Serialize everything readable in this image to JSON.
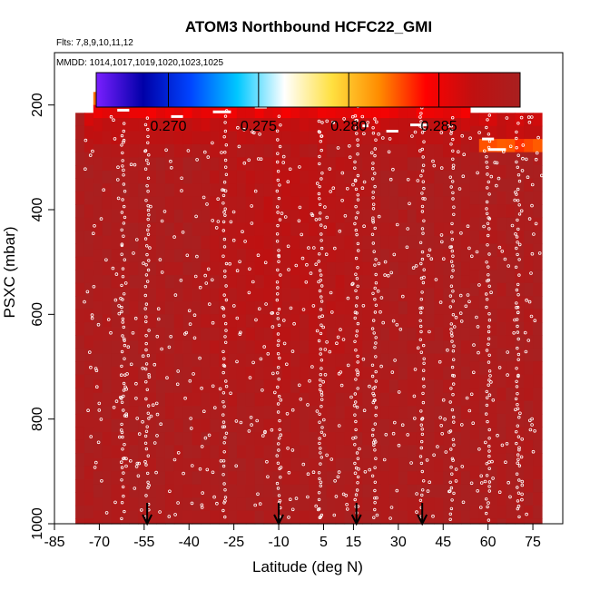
{
  "chart_data": {
    "type": "heatmap",
    "title": "ATOM3 Northbound HCFC22_GMI",
    "annotations": [
      "Flts: 7,8,9,10,11,12",
      "MMDD: 1014,1017,1019,1020,1023,1025"
    ],
    "xlabel": "Latitude (deg N)",
    "ylabel": "PSXC (mbar)",
    "xlim": [
      -85,
      85
    ],
    "ylim": [
      1000,
      100
    ],
    "x_ticks": [
      -85,
      -70,
      -55,
      -40,
      -25,
      -10,
      5,
      15,
      30,
      45,
      60,
      75
    ],
    "y_ticks": [
      200,
      400,
      600,
      800,
      1000
    ],
    "colorbar": {
      "range": [
        0.266,
        0.2895
      ],
      "ticks": [
        0.27,
        0.275,
        0.28,
        0.285
      ],
      "tick_labels": [
        "0.270",
        "0.275",
        "0.280",
        "0.285"
      ],
      "colors": [
        "#7a1fff",
        "#0000a8",
        "#0044ff",
        "#00c8ff",
        "#ffffff",
        "#ffe040",
        "#ff8c00",
        "#ff0000",
        "#c01010",
        "#a82020"
      ]
    },
    "profile_markers_lat": [
      -54,
      -10,
      16,
      38
    ],
    "field": {
      "lat_range": [
        -78,
        78
      ],
      "pressure_range": [
        175,
        1000
      ],
      "background_value": 0.289,
      "features": [
        {
          "kind": "top-layer",
          "lat": [
            -72,
            53
          ],
          "p": [
            178,
            215
          ],
          "value": 0.2815
        },
        {
          "kind": "upper-band",
          "lat": [
            -75,
            78
          ],
          "p": [
            215,
            300
          ],
          "value": 0.286
        },
        {
          "kind": "low-spot",
          "lat": [
            -59,
            -58
          ],
          "p": [
            180,
            205
          ],
          "value": 0.2765
        },
        {
          "kind": "mid-tropics",
          "lat": [
            -40,
            25
          ],
          "p": [
            300,
            850
          ],
          "value": 0.2875
        },
        {
          "kind": "upper-right-yellow",
          "lat": [
            58,
            78
          ],
          "p": [
            262,
            300
          ],
          "value": 0.283
        }
      ]
    }
  }
}
